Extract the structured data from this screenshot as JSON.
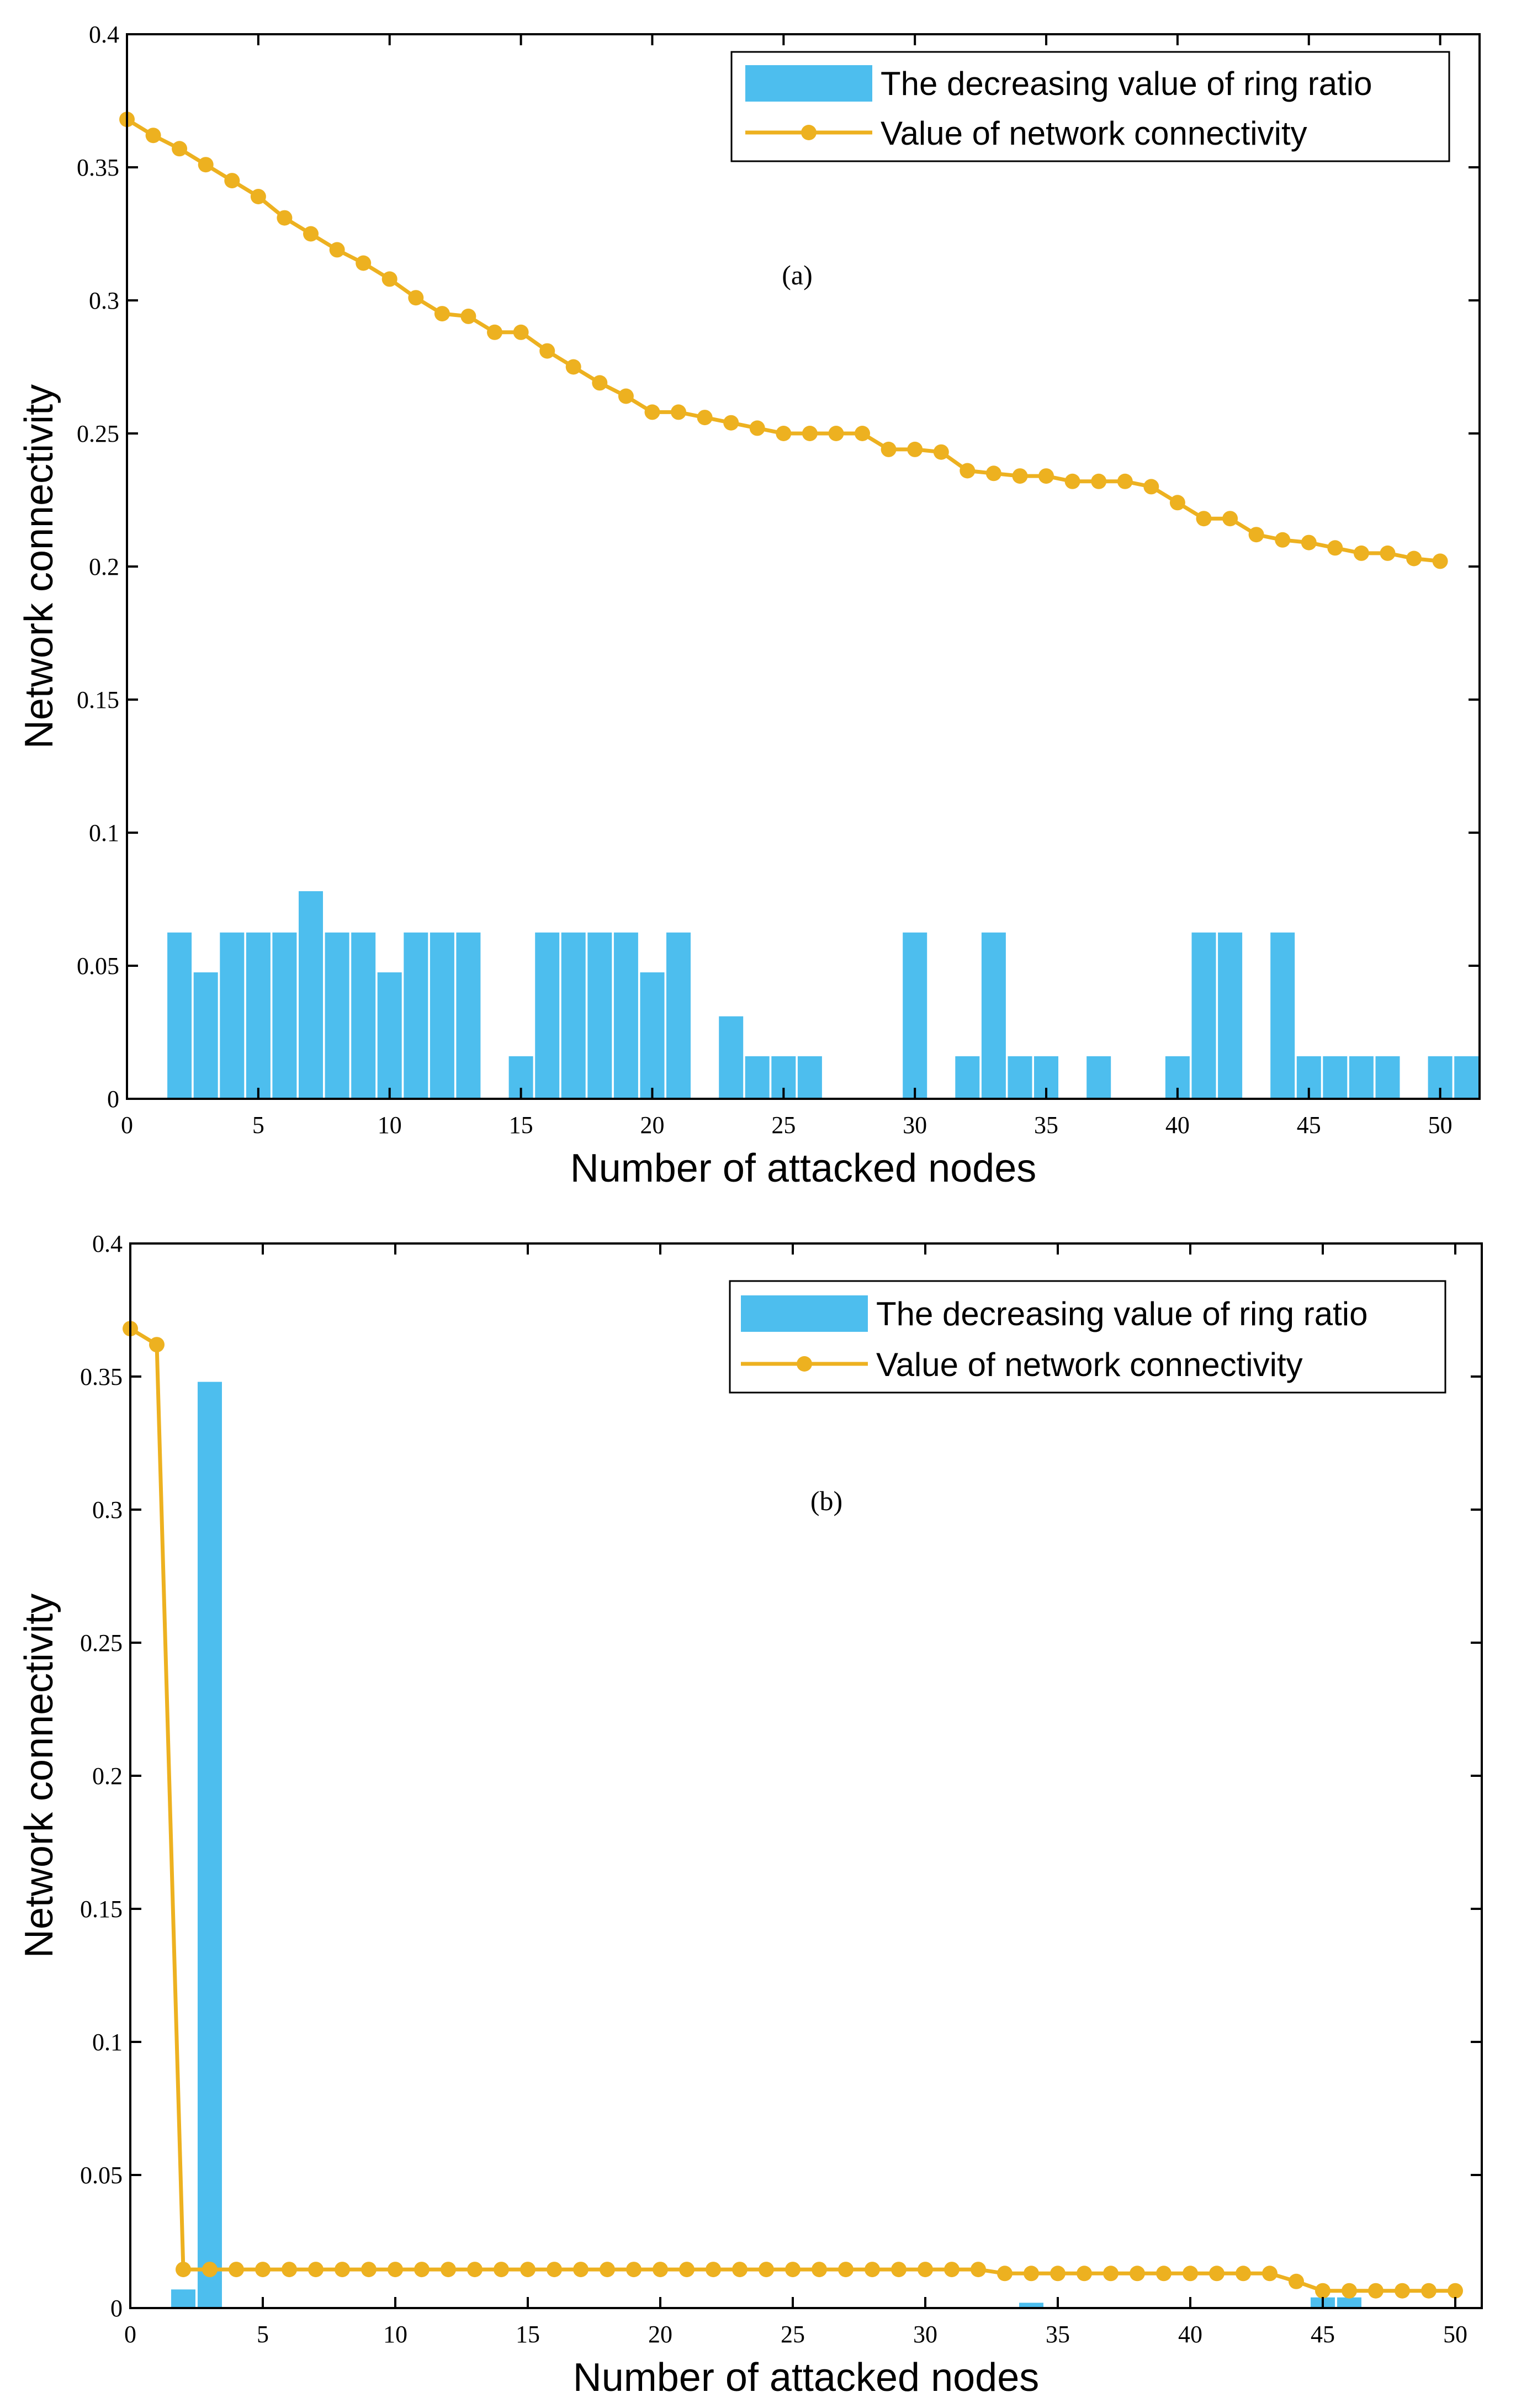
{
  "colors": {
    "bar": "#4DBEEE",
    "line": "#EDB120",
    "axis": "#000000",
    "background": "#ffffff"
  },
  "chart_data": [
    {
      "type": "bar+line",
      "panel_label": "(a)",
      "xlabel": "Number of attacked nodes",
      "ylabel": "Network connectivity",
      "xlim": [
        0,
        51.5
      ],
      "ylim": [
        0,
        0.4
      ],
      "xticks": [
        0,
        5,
        10,
        15,
        20,
        25,
        30,
        35,
        40,
        45,
        50
      ],
      "xtick_labels": [
        "0",
        "5",
        "10",
        "15",
        "20",
        "25",
        "30",
        "35",
        "40",
        "45",
        "50"
      ],
      "yticks": [
        0,
        0.05,
        0.1,
        0.15,
        0.2,
        0.25,
        0.3,
        0.35,
        0.4
      ],
      "ytick_labels": [
        "0",
        "0.05",
        "0.1",
        "0.15",
        "0.2",
        "0.25",
        "0.3",
        "0.35",
        "0.4"
      ],
      "grid": false,
      "legend_position": "top-right",
      "legend": [
        "The decreasing value of ring ratio",
        "Value of network connectivity"
      ],
      "bars": {
        "name": "The decreasing value of ring ratio",
        "x": [
          2,
          3,
          4,
          5,
          6,
          7,
          8,
          9,
          10,
          11,
          12,
          13,
          15,
          16,
          17,
          18,
          19,
          20,
          21,
          23,
          24,
          25,
          26,
          30,
          32,
          33,
          34,
          35,
          37,
          40,
          41,
          42,
          44,
          45,
          46,
          47,
          48,
          50,
          51
        ],
        "values": [
          0.0625,
          0.0475,
          0.0625,
          0.0625,
          0.0625,
          0.078,
          0.0625,
          0.0625,
          0.0475,
          0.0625,
          0.0625,
          0.0625,
          0.016,
          0.0625,
          0.0625,
          0.0625,
          0.0625,
          0.0475,
          0.0625,
          0.031,
          0.016,
          0.016,
          0.016,
          0.0625,
          0.016,
          0.0625,
          0.016,
          0.016,
          0.016,
          0.016,
          0.0625,
          0.0625,
          0.0625,
          0.016,
          0.016,
          0.016,
          0.016,
          0.016,
          0.016
        ]
      },
      "line": {
        "name": "Value of network connectivity",
        "x": [
          0,
          1,
          2,
          3,
          4,
          5,
          6,
          7,
          8,
          9,
          10,
          11,
          12,
          13,
          14,
          15,
          16,
          17,
          18,
          19,
          20,
          21,
          22,
          23,
          24,
          25,
          26,
          27,
          28,
          29,
          30,
          31,
          32,
          33,
          34,
          35,
          36,
          37,
          38,
          39,
          40,
          41,
          42,
          43,
          44,
          45,
          46,
          47,
          48,
          49,
          50
        ],
        "values": [
          0.368,
          0.362,
          0.357,
          0.351,
          0.345,
          0.339,
          0.331,
          0.325,
          0.319,
          0.314,
          0.308,
          0.301,
          0.295,
          0.294,
          0.288,
          0.288,
          0.281,
          0.275,
          0.269,
          0.264,
          0.258,
          0.258,
          0.256,
          0.254,
          0.252,
          0.25,
          0.25,
          0.25,
          0.25,
          0.244,
          0.244,
          0.243,
          0.236,
          0.235,
          0.234,
          0.234,
          0.232,
          0.232,
          0.232,
          0.23,
          0.224,
          0.218,
          0.218,
          0.212,
          0.21,
          0.209,
          0.207,
          0.205,
          0.205,
          0.203,
          0.202
        ]
      }
    },
    {
      "type": "bar+line",
      "panel_label": "(b)",
      "xlabel": "Number of attacked nodes",
      "ylabel": "Network connectivity",
      "xlim": [
        0,
        51
      ],
      "ylim": [
        0,
        0.4
      ],
      "xticks": [
        0,
        5,
        10,
        15,
        20,
        25,
        30,
        35,
        40,
        45,
        50
      ],
      "xtick_labels": [
        "0",
        "5",
        "10",
        "15",
        "20",
        "25",
        "30",
        "35",
        "40",
        "45",
        "50"
      ],
      "yticks": [
        0,
        0.05,
        0.1,
        0.15,
        0.2,
        0.25,
        0.3,
        0.35,
        0.4
      ],
      "ytick_labels": [
        "0",
        "0.05",
        "0.1",
        "0.15",
        "0.2",
        "0.25",
        "0.3",
        "0.35",
        "0.4"
      ],
      "grid": false,
      "legend_position": "top-right",
      "legend": [
        "The decreasing value of ring ratio",
        "Value of network connectivity"
      ],
      "bars": {
        "name": "The decreasing value of ring ratio",
        "x": [
          2,
          3,
          34,
          45,
          46
        ],
        "values": [
          0.007,
          0.348,
          0.002,
          0.004,
          0.004
        ]
      },
      "line": {
        "name": "Value of network connectivity",
        "x": [
          0,
          1,
          2,
          3,
          4,
          5,
          6,
          7,
          8,
          9,
          10,
          11,
          12,
          13,
          14,
          15,
          16,
          17,
          18,
          19,
          20,
          21,
          22,
          23,
          24,
          25,
          26,
          27,
          28,
          29,
          30,
          31,
          32,
          33,
          34,
          35,
          36,
          37,
          38,
          39,
          40,
          41,
          42,
          43,
          44,
          45,
          46,
          47,
          48,
          49,
          50
        ],
        "values": [
          0.368,
          0.362,
          0.0145,
          0.0145,
          0.0145,
          0.0145,
          0.0145,
          0.0145,
          0.0145,
          0.0145,
          0.0145,
          0.0145,
          0.0145,
          0.0145,
          0.0145,
          0.0145,
          0.0145,
          0.0145,
          0.0145,
          0.0145,
          0.0145,
          0.0145,
          0.0145,
          0.0145,
          0.0145,
          0.0145,
          0.0145,
          0.0145,
          0.0145,
          0.0145,
          0.0145,
          0.0145,
          0.0145,
          0.013,
          0.013,
          0.013,
          0.013,
          0.013,
          0.013,
          0.013,
          0.013,
          0.013,
          0.013,
          0.013,
          0.01,
          0.0065,
          0.0065,
          0.0065,
          0.0065,
          0.0065,
          0.0065
        ]
      }
    }
  ]
}
